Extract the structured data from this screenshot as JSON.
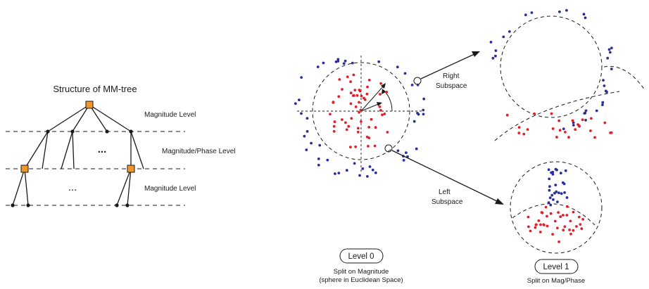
{
  "tree": {
    "title": "Structure of MM-tree",
    "level_labels": [
      "Magnitude Level",
      "Magnitude/Phase Level",
      "Magnitude Level"
    ],
    "ellipsis_upper": "...",
    "ellipsis_lower": "..."
  },
  "level0": {
    "badge": "Level 0",
    "caption_line1": "Split on Magnitude",
    "caption_line2": "(sphere in Euclidean Space)"
  },
  "level1": {
    "badge": "Level 1",
    "caption": "Split on Mag/Phase"
  },
  "arrows": {
    "right_line1": "Right",
    "right_line2": "Subspace",
    "left_line1": "Left",
    "left_line2": "Subspace"
  },
  "colors": {
    "inner_points": "#e0202a",
    "outer_points": "#2a2f9a",
    "node_fill": "#f0962a",
    "line": "#1a1a1a"
  }
}
